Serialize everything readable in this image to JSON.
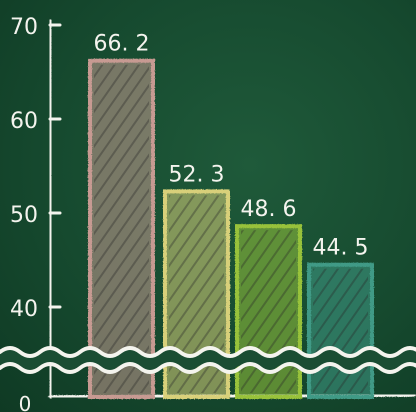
{
  "chart_data": {
    "type": "bar",
    "title": "",
    "xlabel": "",
    "ylabel": "",
    "categories": [
      "",
      "",
      "",
      ""
    ],
    "values": [
      66.2,
      52.3,
      48.6,
      44.5
    ],
    "value_labels": [
      "66. 2",
      "52. 3",
      "48. 6",
      "44. 5"
    ],
    "y_ticks": [
      {
        "value": 40,
        "label": "40"
      },
      {
        "value": 50,
        "label": "50"
      },
      {
        "value": 60,
        "label": "60"
      },
      {
        "value": 70,
        "label": "70"
      }
    ],
    "y_zero_label": "0",
    "ylim": [
      0,
      70
    ],
    "axis_break": true,
    "grid": false,
    "style": "chalkboard",
    "bar_colors": [
      "#c79a92",
      "#d8d07a",
      "#98c23a",
      "#3f9a86"
    ],
    "background_color": "#1a4d33",
    "chalk_color": "#f4f4ee"
  }
}
